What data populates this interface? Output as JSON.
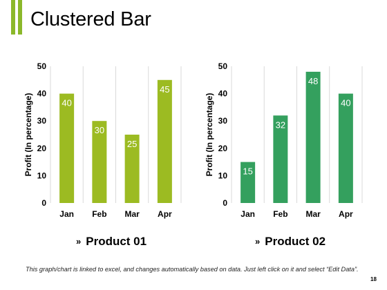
{
  "slide": {
    "title": "Clustered Bar",
    "footnote": "This graph/chart is linked to excel, and changes automatically based on data. Just left click on it and select “Edit Data”.",
    "page_number": "18",
    "legend_marker": "»",
    "accent_colors": [
      "#8bb82a",
      "#8bb82a"
    ]
  },
  "chart_data": [
    {
      "type": "bar",
      "categories": [
        "Jan",
        "Feb",
        "Mar",
        "Apr"
      ],
      "series": [
        {
          "name": "Product 01",
          "values": [
            40,
            30,
            25,
            45
          ],
          "color": "#9cbb22"
        }
      ],
      "xlabel": "",
      "ylabel": "Profit  (In percentage)",
      "ylim": [
        0,
        50
      ],
      "yticks": [
        0,
        10,
        20,
        30,
        40,
        50
      ],
      "grid": true,
      "legend": "bottom"
    },
    {
      "type": "bar",
      "categories": [
        "Jan",
        "Feb",
        "Mar",
        "Apr"
      ],
      "series": [
        {
          "name": "Product 02",
          "values": [
            15,
            32,
            48,
            40
          ],
          "color": "#34a05e"
        }
      ],
      "xlabel": "",
      "ylabel": "Profit  (In percentage)",
      "ylim": [
        0,
        50
      ],
      "yticks": [
        0,
        10,
        20,
        30,
        40,
        50
      ],
      "grid": true,
      "legend": "bottom"
    }
  ]
}
